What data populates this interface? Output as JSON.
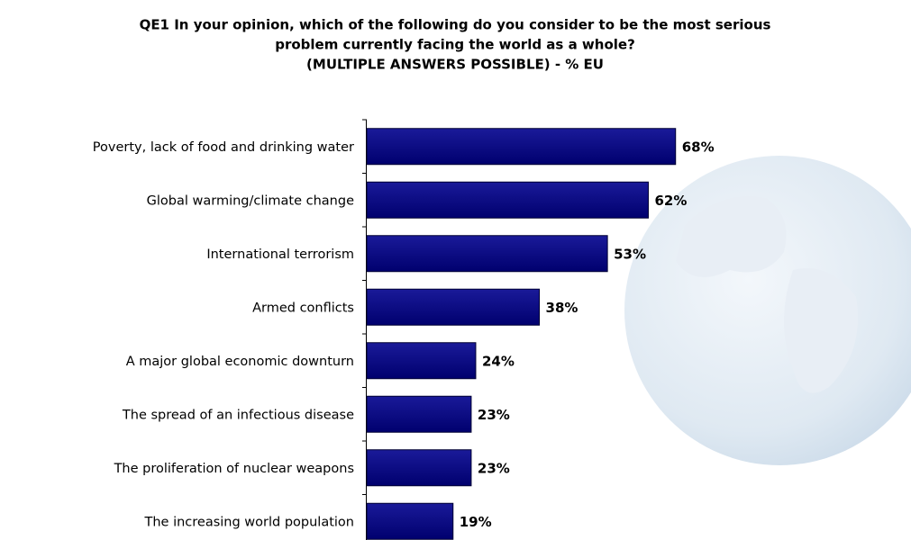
{
  "chart_data": {
    "type": "bar",
    "orientation": "horizontal",
    "title": [
      "QE1 In your opinion, which of the following do you consider to be the most serious",
      "problem currently facing the world as a whole?",
      "(MULTIPLE ANSWERS POSSIBLE) - % EU"
    ],
    "categories": [
      "Poverty, lack of food and drinking water",
      "Global warming/climate change",
      "International terrorism",
      "Armed conflicts",
      "A major global economic downturn",
      "The spread of an infectious disease",
      "The proliferation of nuclear weapons",
      "The increasing world population"
    ],
    "values": [
      68,
      62,
      53,
      38,
      24,
      23,
      23,
      19
    ],
    "value_labels": [
      "68%",
      "62%",
      "53%",
      "38%",
      "24%",
      "23%",
      "23%",
      "19%"
    ],
    "color": "#000080"
  }
}
